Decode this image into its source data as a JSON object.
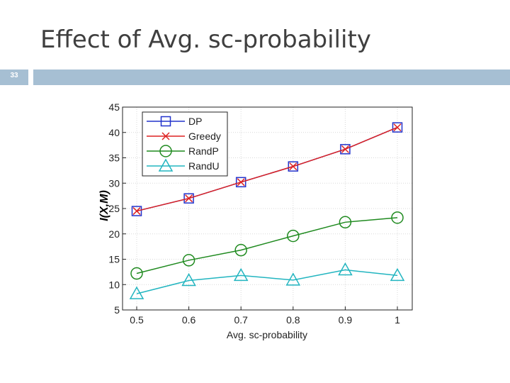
{
  "slide": {
    "title": "Effect of Avg. sc-probability",
    "number": "33"
  },
  "colors": {
    "header_bar": "#a6bfd3",
    "DP": "#2233cc",
    "Greedy": "#dd2222",
    "RandP": "#1f8a1f",
    "RandU": "#22b5c0"
  },
  "chart_data": {
    "type": "line",
    "title": "",
    "xlabel": "Avg. sc-probability",
    "ylabel": "I(X,M)",
    "x": [
      0.5,
      0.6,
      0.7,
      0.8,
      0.9,
      1
    ],
    "x_tick_labels": [
      "0.5",
      "0.6",
      "0.7",
      "0.8",
      "0.9",
      "1"
    ],
    "xlim": [
      0.5,
      1
    ],
    "ylim": [
      5,
      45
    ],
    "y_ticks": [
      5,
      10,
      15,
      20,
      25,
      30,
      35,
      40,
      45
    ],
    "grid": true,
    "legend_position": "top-left",
    "series": [
      {
        "name": "DP",
        "marker": "square",
        "values": [
          24.5,
          27,
          30.2,
          33.3,
          36.7,
          41
        ]
      },
      {
        "name": "Greedy",
        "marker": "x",
        "values": [
          24.5,
          27,
          30.2,
          33.3,
          36.7,
          41
        ]
      },
      {
        "name": "RandP",
        "marker": "circle",
        "values": [
          12.2,
          14.8,
          16.8,
          19.6,
          22.3,
          23.2
        ]
      },
      {
        "name": "RandU",
        "marker": "triangle",
        "values": [
          8.2,
          10.8,
          11.8,
          10.9,
          12.9,
          11.8
        ]
      }
    ]
  }
}
